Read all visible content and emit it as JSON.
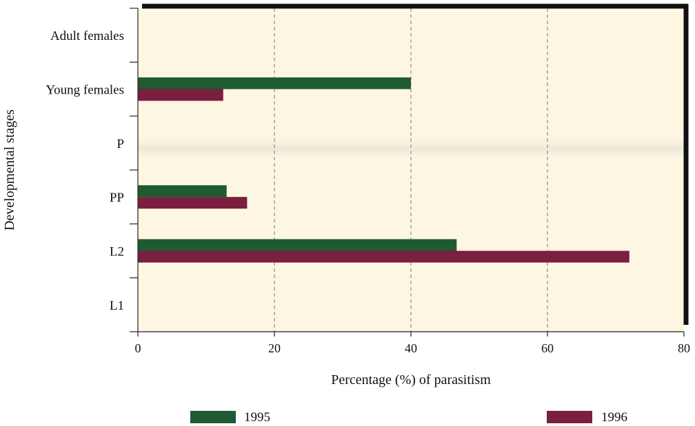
{
  "chart_data": {
    "type": "bar",
    "orientation": "horizontal",
    "title": "",
    "xlabel": "Percentage (%) of parasitism",
    "ylabel": "Developmental stages",
    "xlim": [
      0,
      80
    ],
    "xticks": [
      0,
      20,
      40,
      60,
      80
    ],
    "grid": "vertical dashed",
    "categories": [
      "Adult females",
      "Young females",
      "P",
      "PP",
      "L2",
      "L1"
    ],
    "series": [
      {
        "name": "1995",
        "color": "#1f5a32",
        "values": [
          0,
          40,
          0,
          13,
          46.7,
          0
        ]
      },
      {
        "name": "1996",
        "color": "#7a1f3d",
        "values": [
          0,
          12.5,
          0,
          16,
          72,
          0
        ]
      }
    ],
    "legend": "bottom",
    "background": "#fdf6e3"
  }
}
